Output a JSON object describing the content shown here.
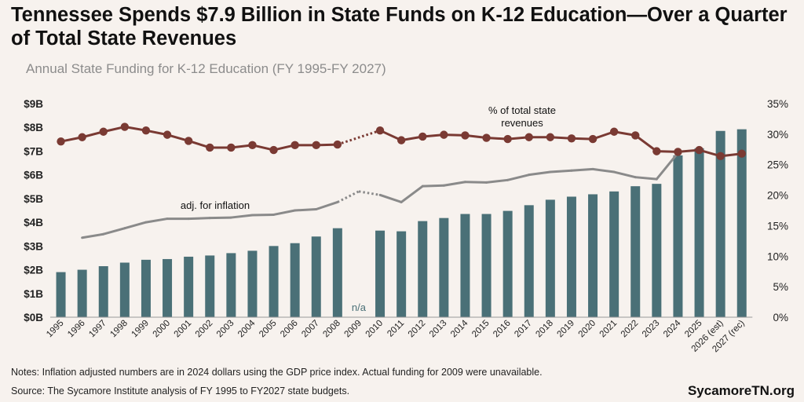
{
  "title": "Tennessee Spends $7.9 Billion in State Funds on K-12 Education—Over a Quarter of Total State Revenues",
  "subtitle": "Annual State Funding for K-12 Education (FY 1995-FY 2027)",
  "notes": "Notes: Inflation adjusted numbers are in 2024 dollars using the GDP price index. Actual funding for 2009 were unavailable.",
  "source": "Source: The Sycamore Institute analysis of FY 1995 to FY2027 state budgets.",
  "brand": "SycamoreTN.org",
  "chart_data": {
    "type": "bar",
    "categories": [
      "1995",
      "1996",
      "1997",
      "1998",
      "1999",
      "2000",
      "2001",
      "2002",
      "2003",
      "2004",
      "2005",
      "2006",
      "2007",
      "2008",
      "2009",
      "2010",
      "2011",
      "2012",
      "2013",
      "2014",
      "2015",
      "2016",
      "2017",
      "2018",
      "2019",
      "2020",
      "2021",
      "2022",
      "2023",
      "2024",
      "2025",
      "2026 (est)",
      "2027 (rec)"
    ],
    "left_axis": {
      "ylim": [
        0,
        9
      ],
      "ticks": [
        "$0B",
        "$1B",
        "$2B",
        "$3B",
        "$4B",
        "$5B",
        "$6B",
        "$7B",
        "$8B",
        "$9B"
      ]
    },
    "right_axis": {
      "ylim": [
        0,
        35
      ],
      "ticks": [
        "0%",
        "5%",
        "10%",
        "15%",
        "20%",
        "25%",
        "30%",
        "35%"
      ]
    },
    "series": [
      {
        "type": "bar",
        "axis": "left",
        "color": "#4a7077",
        "values": [
          1.9,
          2.0,
          2.15,
          2.3,
          2.42,
          2.45,
          2.55,
          2.6,
          2.7,
          2.8,
          3.0,
          3.12,
          3.4,
          3.75,
          null,
          3.65,
          3.62,
          4.05,
          4.18,
          4.35,
          4.35,
          4.48,
          4.72,
          4.95,
          5.08,
          5.18,
          5.3,
          5.52,
          5.62,
          6.82,
          7.12,
          7.85,
          7.92
        ]
      },
      {
        "type": "line",
        "axis": "left",
        "name": "adj. for inflation",
        "color": "#8a8a8a",
        "values": [
          null,
          3.35,
          3.5,
          3.75,
          4.0,
          4.15,
          4.15,
          4.18,
          4.2,
          4.3,
          4.32,
          4.5,
          4.55,
          4.85,
          5.3,
          5.15,
          4.85,
          5.52,
          5.55,
          5.7,
          5.68,
          5.78,
          6.0,
          6.12,
          6.18,
          6.24,
          6.12,
          5.9,
          5.82,
          6.92,
          null,
          null,
          null
        ],
        "dotted_segments": [
          [
            13,
            15
          ]
        ]
      },
      {
        "type": "line",
        "axis": "right",
        "name": "% of total state revenues",
        "color": "#7a3a33",
        "values": [
          28.8,
          29.5,
          30.4,
          31.2,
          30.6,
          29.9,
          28.9,
          27.8,
          27.8,
          28.2,
          27.4,
          28.2,
          28.2,
          28.3,
          null,
          30.6,
          29.0,
          29.6,
          29.9,
          29.8,
          29.4,
          29.2,
          29.5,
          29.5,
          29.3,
          29.2,
          30.4,
          29.8,
          27.2,
          27.1,
          27.4,
          26.4,
          26.8
        ],
        "dotted_segments": [
          [
            13,
            15
          ]
        ]
      }
    ],
    "annotations": {
      "inflation_label": "adj. for inflation",
      "pct_label_line1": "% of total state",
      "pct_label_line2": "revenues",
      "na_label": "n/a"
    }
  }
}
